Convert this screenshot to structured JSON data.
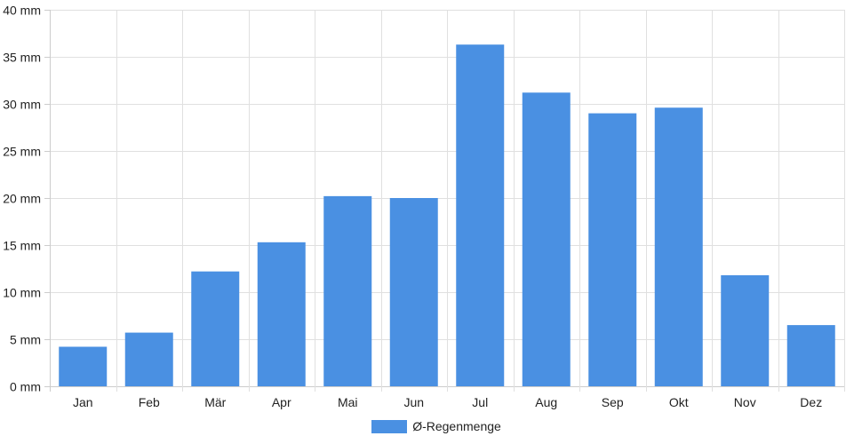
{
  "colors": {
    "bar": "#4a90e2",
    "grid": "#e0e0e0",
    "axis": "#cccccc",
    "text": "#222222"
  },
  "legend": {
    "label": "Ø-Regenmenge",
    "color": "#4a90e2"
  },
  "chart_data": {
    "type": "bar",
    "categories": [
      "Jan",
      "Feb",
      "Mär",
      "Apr",
      "Mai",
      "Jun",
      "Jul",
      "Aug",
      "Sep",
      "Okt",
      "Nov",
      "Dez"
    ],
    "series": [
      {
        "name": "Ø-Regenmenge",
        "values": [
          4.2,
          5.7,
          12.2,
          15.3,
          20.2,
          20.0,
          36.3,
          31.2,
          29.0,
          29.6,
          11.8,
          6.5
        ]
      }
    ],
    "ylim": [
      0,
      40
    ],
    "yticks": [
      {
        "value": 0,
        "label": "0 mm"
      },
      {
        "value": 5,
        "label": "5 mm"
      },
      {
        "value": 10,
        "label": "10 mm"
      },
      {
        "value": 15,
        "label": "15 mm"
      },
      {
        "value": 20,
        "label": "20 mm"
      },
      {
        "value": 25,
        "label": "25 mm"
      },
      {
        "value": 30,
        "label": "30 mm"
      },
      {
        "value": 35,
        "label": "35 mm"
      },
      {
        "value": 40,
        "label": "40 mm"
      }
    ],
    "grid": true,
    "legend_position": "bottom"
  }
}
